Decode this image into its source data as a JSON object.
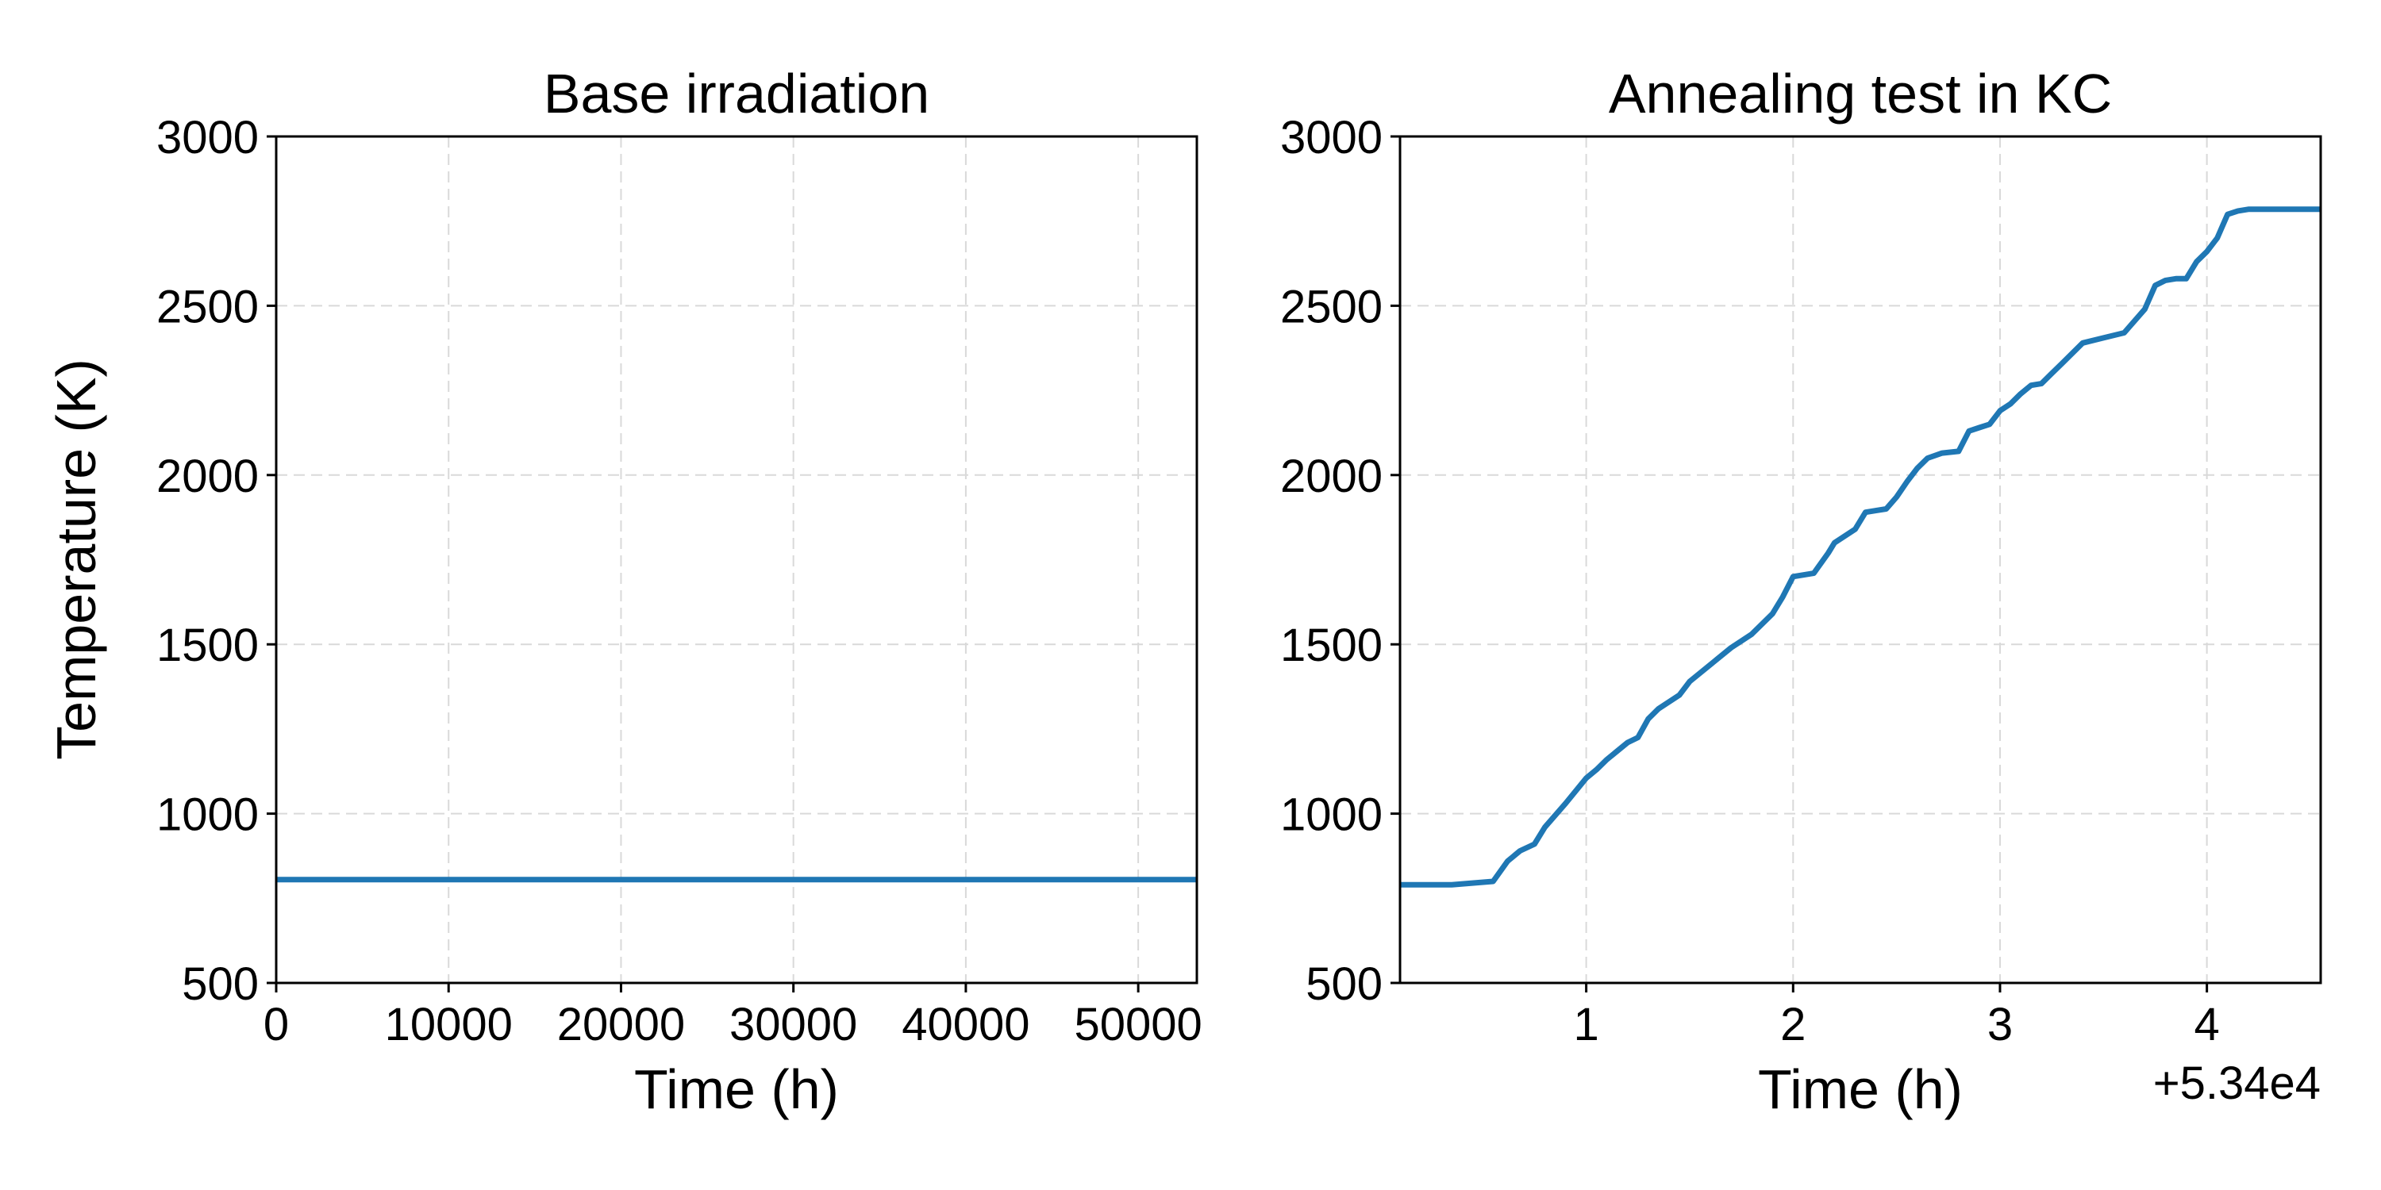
{
  "chart_data": [
    {
      "type": "line",
      "title": "Base irradiation",
      "xlabel": "Time (h)",
      "ylabel": "Temperature (K)",
      "xlim": [
        0,
        53400
      ],
      "ylim": [
        500,
        3000
      ],
      "xticks": [
        0,
        10000,
        20000,
        30000,
        40000,
        50000
      ],
      "xtick_labels": [
        "0",
        "10000",
        "20000",
        "30000",
        "40000",
        "50000"
      ],
      "yticks": [
        500,
        1000,
        1500,
        2000,
        2500,
        3000
      ],
      "ytick_labels": [
        "500",
        "1000",
        "1500",
        "2000",
        "2500",
        "3000"
      ],
      "grid": true,
      "series": [
        {
          "color": "#1f77b4",
          "x": [
            0,
            53400
          ],
          "y": [
            805,
            805
          ]
        }
      ]
    },
    {
      "type": "line",
      "title": "Annealing test in KC",
      "xlabel": "Time (h)",
      "ylabel": "",
      "x_offset_text": "+5.34e4",
      "xlim": [
        53400.1,
        53404.55
      ],
      "ylim": [
        500,
        3000
      ],
      "xticks": [
        53401,
        53402,
        53403,
        53404
      ],
      "xtick_labels": [
        "1",
        "2",
        "3",
        "4"
      ],
      "yticks": [
        500,
        1000,
        1500,
        2000,
        2500,
        3000
      ],
      "ytick_labels": [
        "500",
        "1000",
        "1500",
        "2000",
        "2500",
        "3000"
      ],
      "grid": true,
      "series": [
        {
          "color": "#1f77b4",
          "x": [
            53400.1,
            53400.35,
            53400.45,
            53400.55,
            53400.62,
            53400.68,
            53400.75,
            53400.8,
            53400.9,
            53401.0,
            53401.05,
            53401.1,
            53401.2,
            53401.25,
            53401.3,
            53401.35,
            53401.45,
            53401.5,
            53401.6,
            53401.7,
            53401.8,
            53401.9,
            53401.95,
            53402.0,
            53402.1,
            53402.17,
            53402.2,
            53402.3,
            53402.35,
            53402.4,
            53402.45,
            53402.5,
            53402.55,
            53402.6,
            53402.65,
            53402.72,
            53402.8,
            53402.85,
            53402.9,
            53402.95,
            53403.0,
            53403.05,
            53403.1,
            53403.15,
            53403.2,
            53403.25,
            53403.3,
            53403.4,
            53403.5,
            53403.6,
            53403.7,
            53403.75,
            53403.8,
            53403.85,
            53403.9,
            53403.95,
            53404.0,
            53404.05,
            53404.1,
            53404.15,
            53404.2,
            53404.25,
            53404.3,
            53404.55
          ],
          "y": [
            790,
            790,
            795,
            800,
            860,
            890,
            910,
            960,
            1030,
            1105,
            1130,
            1160,
            1210,
            1225,
            1280,
            1310,
            1350,
            1390,
            1440,
            1490,
            1530,
            1590,
            1640,
            1700,
            1710,
            1770,
            1800,
            1840,
            1890,
            1895,
            1900,
            1935,
            1980,
            2020,
            2050,
            2065,
            2070,
            2130,
            2140,
            2150,
            2190,
            2210,
            2240,
            2265,
            2270,
            2300,
            2330,
            2390,
            2405,
            2420,
            2490,
            2560,
            2575,
            2580,
            2580,
            2630,
            2660,
            2700,
            2770,
            2780,
            2785,
            2785,
            2785,
            2785
          ]
        }
      ]
    }
  ]
}
